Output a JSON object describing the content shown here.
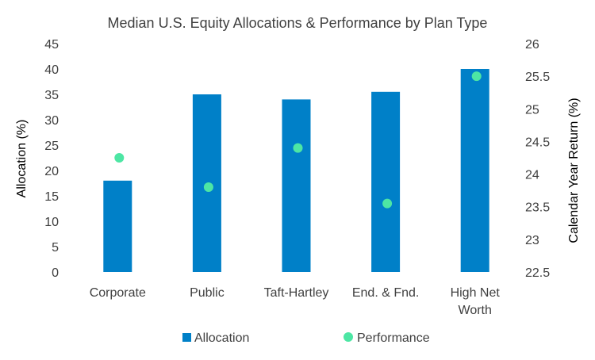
{
  "chart_data": {
    "type": "bar",
    "title": "Median U.S. Equity Allocations & Performance by Plan Type",
    "categories": [
      [
        "Corporate"
      ],
      [
        "Public"
      ],
      [
        "Taft-Hartley"
      ],
      [
        "End. & Fnd."
      ],
      [
        "High Net",
        "Worth"
      ]
    ],
    "series": [
      {
        "name": "Allocation",
        "type": "bar",
        "axis": "left",
        "values": [
          18,
          35,
          34,
          35.5,
          40
        ],
        "color": "#0080C8"
      },
      {
        "name": "Performance",
        "type": "scatter",
        "axis": "right",
        "values": [
          24.25,
          23.8,
          24.4,
          23.55,
          25.5
        ],
        "color": "#4DE6A4"
      }
    ],
    "ylabel": "Allocation (%)",
    "y2label": "Calendar Year Return (%)",
    "ylim": [
      0,
      45
    ],
    "yticks": [
      "0",
      "5",
      "10",
      "15",
      "20",
      "25",
      "30",
      "35",
      "40",
      "45"
    ],
    "y2lim": [
      22.5,
      26
    ],
    "y2ticks": [
      "22.5",
      "23",
      "23.5",
      "24",
      "24.5",
      "25",
      "25.5",
      "26"
    ],
    "grid": false,
    "legend_position": "bottom"
  }
}
